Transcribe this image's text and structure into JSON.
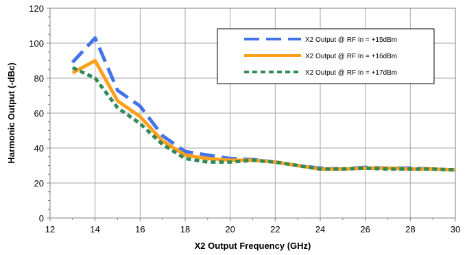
{
  "chart_data": {
    "type": "line",
    "title": "",
    "xlabel": "X2 Output Frequency (GHz)",
    "ylabel": "Harmonic Output (-dBc)",
    "xlim": [
      12,
      30
    ],
    "ylim": [
      0,
      120
    ],
    "xticks": [
      12,
      14,
      16,
      18,
      20,
      22,
      24,
      26,
      28,
      30
    ],
    "yticks": [
      0,
      20,
      40,
      60,
      80,
      100,
      120
    ],
    "grid": true,
    "legend_position": "top-right",
    "series": [
      {
        "name": "X2 Output @ RF In = +15dBm",
        "color": "#4472e8",
        "style": "long-dash",
        "x": [
          13,
          14,
          15,
          16,
          17,
          18,
          19,
          20,
          21,
          22,
          23,
          24,
          25,
          26,
          27,
          28,
          29,
          30
        ],
        "y": [
          89,
          103,
          73,
          64,
          47,
          38,
          36,
          34,
          33.5,
          32,
          30,
          28.5,
          28,
          29,
          28.5,
          28.5,
          28,
          27.5
        ]
      },
      {
        "name": "X2 Output @ RF In = +16dBm",
        "color": "#ffa01c",
        "style": "solid",
        "x": [
          13,
          14,
          15,
          16,
          17,
          18,
          19,
          20,
          21,
          22,
          23,
          24,
          25,
          26,
          27,
          28,
          29,
          30
        ],
        "y": [
          83,
          90,
          67,
          58,
          44,
          36,
          34,
          33,
          33,
          32,
          30,
          28,
          28,
          28.5,
          28.5,
          28,
          28,
          27.5
        ]
      },
      {
        "name": "X2 Output @ RF In = +17dBm",
        "color": "#2e8b57",
        "style": "short-dash",
        "x": [
          13,
          14,
          15,
          16,
          17,
          18,
          19,
          20,
          21,
          22,
          23,
          24,
          25,
          26,
          27,
          28,
          29,
          30
        ],
        "y": [
          86,
          80,
          63,
          54,
          42,
          34,
          32,
          32,
          33,
          32,
          30,
          28,
          28,
          28.5,
          28,
          28,
          28,
          27.5
        ]
      }
    ]
  }
}
